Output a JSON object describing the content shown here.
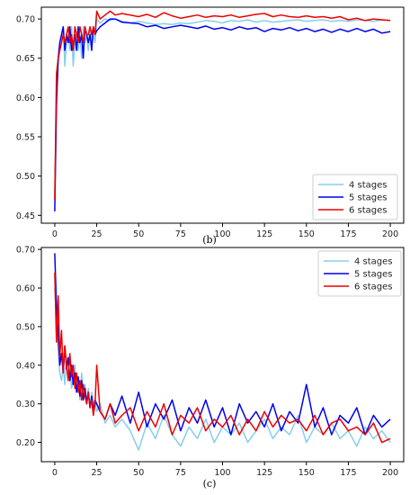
{
  "chart_data": [
    {
      "type": "line",
      "caption": "(b)",
      "xlim": [
        -8,
        208
      ],
      "ylim": [
        0.44,
        0.715
      ],
      "xticks": [
        "0",
        "25",
        "50",
        "75",
        "100",
        "125",
        "150",
        "175",
        "200"
      ],
      "yticks": [
        "0.45",
        "0.50",
        "0.55",
        "0.60",
        "0.65",
        "0.70"
      ],
      "grid": false,
      "legend": "bottom-right",
      "series": [
        {
          "name": "4 stages",
          "color": "#87ceeb",
          "x": [
            0,
            1,
            2,
            3,
            4,
            5,
            6,
            7,
            8,
            9,
            10,
            11,
            12,
            13,
            14,
            15,
            16,
            17,
            18,
            19,
            20,
            21,
            22,
            23,
            24,
            25,
            27,
            30,
            33,
            36,
            40,
            45,
            50,
            55,
            60,
            65,
            70,
            75,
            80,
            85,
            90,
            95,
            100,
            105,
            110,
            115,
            120,
            125,
            130,
            135,
            140,
            145,
            150,
            155,
            160,
            165,
            170,
            175,
            180,
            185,
            190,
            195,
            200
          ],
          "values": [
            0.47,
            0.6,
            0.64,
            0.66,
            0.67,
            0.69,
            0.64,
            0.67,
            0.68,
            0.66,
            0.69,
            0.64,
            0.67,
            0.68,
            0.66,
            0.68,
            0.65,
            0.69,
            0.67,
            0.68,
            0.66,
            0.69,
            0.67,
            0.68,
            0.67,
            0.7,
            0.695,
            0.7,
            0.698,
            0.7,
            0.697,
            0.695,
            0.697,
            0.695,
            0.693,
            0.694,
            0.693,
            0.695,
            0.694,
            0.696,
            0.698,
            0.697,
            0.695,
            0.698,
            0.697,
            0.699,
            0.696,
            0.698,
            0.696,
            0.697,
            0.698,
            0.699,
            0.697,
            0.698,
            0.699,
            0.697,
            0.698,
            0.697,
            0.699,
            0.698,
            0.697,
            0.699,
            0.698
          ]
        },
        {
          "name": "5 stages",
          "color": "#0000ee",
          "x": [
            0,
            1,
            2,
            3,
            4,
            5,
            6,
            7,
            8,
            9,
            10,
            11,
            12,
            13,
            14,
            15,
            16,
            17,
            18,
            19,
            20,
            21,
            22,
            23,
            24,
            25,
            27,
            30,
            33,
            36,
            40,
            45,
            50,
            55,
            60,
            65,
            70,
            75,
            80,
            85,
            90,
            95,
            100,
            105,
            110,
            115,
            120,
            125,
            130,
            135,
            140,
            145,
            150,
            155,
            160,
            165,
            170,
            175,
            180,
            185,
            190,
            195,
            200
          ],
          "values": [
            0.455,
            0.59,
            0.65,
            0.67,
            0.68,
            0.69,
            0.66,
            0.68,
            0.67,
            0.69,
            0.66,
            0.67,
            0.68,
            0.66,
            0.69,
            0.67,
            0.68,
            0.65,
            0.69,
            0.68,
            0.67,
            0.68,
            0.66,
            0.69,
            0.68,
            0.685,
            0.69,
            0.695,
            0.7,
            0.7,
            0.696,
            0.695,
            0.694,
            0.69,
            0.692,
            0.688,
            0.69,
            0.692,
            0.69,
            0.688,
            0.691,
            0.687,
            0.689,
            0.686,
            0.69,
            0.687,
            0.689,
            0.684,
            0.688,
            0.686,
            0.689,
            0.685,
            0.688,
            0.684,
            0.687,
            0.683,
            0.687,
            0.684,
            0.688,
            0.684,
            0.687,
            0.682,
            0.684
          ]
        },
        {
          "name": "6 stages",
          "color": "#ee0000",
          "x": [
            0,
            1,
            2,
            3,
            4,
            5,
            6,
            7,
            8,
            9,
            10,
            11,
            12,
            13,
            14,
            15,
            16,
            17,
            18,
            19,
            20,
            21,
            22,
            23,
            24,
            25,
            27,
            30,
            33,
            36,
            40,
            45,
            50,
            55,
            60,
            65,
            70,
            75,
            80,
            85,
            90,
            95,
            100,
            105,
            110,
            115,
            120,
            125,
            130,
            135,
            140,
            145,
            150,
            155,
            160,
            165,
            170,
            175,
            180,
            185,
            190,
            195,
            200
          ],
          "values": [
            0.47,
            0.63,
            0.65,
            0.66,
            0.67,
            0.68,
            0.67,
            0.68,
            0.69,
            0.67,
            0.68,
            0.66,
            0.69,
            0.68,
            0.67,
            0.69,
            0.68,
            0.67,
            0.69,
            0.68,
            0.68,
            0.69,
            0.68,
            0.69,
            0.68,
            0.71,
            0.7,
            0.705,
            0.71,
            0.705,
            0.707,
            0.705,
            0.703,
            0.706,
            0.702,
            0.708,
            0.704,
            0.701,
            0.703,
            0.705,
            0.702,
            0.704,
            0.703,
            0.705,
            0.702,
            0.704,
            0.706,
            0.707,
            0.703,
            0.705,
            0.703,
            0.702,
            0.704,
            0.702,
            0.703,
            0.701,
            0.703,
            0.699,
            0.701,
            0.698,
            0.7,
            0.699,
            0.698
          ]
        }
      ]
    },
    {
      "type": "line",
      "caption": "(c)",
      "xlim": [
        -8,
        208
      ],
      "ylim": [
        0.15,
        0.705
      ],
      "xticks": [
        "0",
        "25",
        "50",
        "75",
        "100",
        "125",
        "150",
        "175",
        "200"
      ],
      "yticks": [
        "0.20",
        "0.30",
        "0.40",
        "0.50",
        "0.60",
        "0.70"
      ],
      "grid": false,
      "legend": "top-right",
      "series": [
        {
          "name": "4 stages",
          "color": "#87ceeb",
          "x": [
            0,
            1,
            2,
            3,
            4,
            5,
            6,
            7,
            8,
            9,
            10,
            11,
            12,
            13,
            14,
            15,
            16,
            17,
            18,
            19,
            20,
            21,
            22,
            23,
            24,
            25,
            27,
            30,
            33,
            36,
            40,
            45,
            50,
            55,
            60,
            65,
            70,
            75,
            80,
            85,
            90,
            95,
            100,
            105,
            110,
            115,
            120,
            125,
            130,
            135,
            140,
            145,
            150,
            155,
            160,
            165,
            170,
            175,
            180,
            185,
            190,
            195,
            200
          ],
          "values": [
            0.6,
            0.52,
            0.44,
            0.38,
            0.36,
            0.4,
            0.35,
            0.42,
            0.37,
            0.39,
            0.34,
            0.36,
            0.4,
            0.33,
            0.36,
            0.31,
            0.38,
            0.32,
            0.35,
            0.3,
            0.34,
            0.29,
            0.33,
            0.3,
            0.31,
            0.28,
            0.3,
            0.25,
            0.27,
            0.24,
            0.26,
            0.23,
            0.18,
            0.25,
            0.21,
            0.27,
            0.22,
            0.19,
            0.24,
            0.21,
            0.26,
            0.2,
            0.24,
            0.22,
            0.25,
            0.2,
            0.23,
            0.26,
            0.21,
            0.24,
            0.22,
            0.27,
            0.2,
            0.24,
            0.22,
            0.25,
            0.21,
            0.23,
            0.19,
            0.24,
            0.21,
            0.23,
            0.2
          ]
        },
        {
          "name": "5 stages",
          "color": "#0000ee",
          "x": [
            0,
            1,
            2,
            3,
            4,
            5,
            6,
            7,
            8,
            9,
            10,
            11,
            12,
            13,
            14,
            15,
            16,
            17,
            18,
            19,
            20,
            21,
            22,
            23,
            24,
            25,
            27,
            30,
            33,
            36,
            40,
            45,
            50,
            55,
            60,
            65,
            70,
            75,
            80,
            85,
            90,
            95,
            100,
            105,
            110,
            115,
            120,
            125,
            130,
            135,
            140,
            145,
            150,
            155,
            160,
            165,
            170,
            175,
            180,
            185,
            190,
            195,
            200
          ],
          "values": [
            0.69,
            0.55,
            0.48,
            0.4,
            0.43,
            0.38,
            0.45,
            0.39,
            0.42,
            0.36,
            0.4,
            0.35,
            0.38,
            0.33,
            0.37,
            0.32,
            0.36,
            0.31,
            0.34,
            0.3,
            0.33,
            0.29,
            0.32,
            0.28,
            0.31,
            0.3,
            0.28,
            0.26,
            0.3,
            0.27,
            0.32,
            0.25,
            0.33,
            0.24,
            0.3,
            0.26,
            0.31,
            0.23,
            0.29,
            0.25,
            0.31,
            0.24,
            0.29,
            0.22,
            0.3,
            0.25,
            0.28,
            0.24,
            0.3,
            0.23,
            0.28,
            0.25,
            0.35,
            0.24,
            0.29,
            0.22,
            0.27,
            0.25,
            0.29,
            0.22,
            0.27,
            0.24,
            0.26
          ]
        },
        {
          "name": "6 stages",
          "color": "#ee0000",
          "x": [
            0,
            1,
            2,
            3,
            4,
            5,
            6,
            7,
            8,
            9,
            10,
            11,
            12,
            13,
            14,
            15,
            16,
            17,
            18,
            19,
            20,
            21,
            22,
            23,
            24,
            25,
            27,
            30,
            33,
            36,
            40,
            45,
            50,
            55,
            60,
            65,
            70,
            75,
            80,
            85,
            90,
            95,
            100,
            105,
            110,
            115,
            120,
            125,
            130,
            135,
            140,
            145,
            150,
            155,
            160,
            165,
            170,
            175,
            180,
            185,
            190,
            195,
            200
          ],
          "values": [
            0.64,
            0.46,
            0.58,
            0.42,
            0.49,
            0.38,
            0.45,
            0.4,
            0.36,
            0.43,
            0.37,
            0.4,
            0.34,
            0.38,
            0.33,
            0.36,
            0.31,
            0.35,
            0.32,
            0.3,
            0.33,
            0.29,
            0.31,
            0.27,
            0.3,
            0.4,
            0.28,
            0.26,
            0.3,
            0.25,
            0.27,
            0.29,
            0.23,
            0.28,
            0.24,
            0.3,
            0.22,
            0.27,
            0.25,
            0.29,
            0.23,
            0.26,
            0.24,
            0.27,
            0.22,
            0.26,
            0.23,
            0.28,
            0.24,
            0.27,
            0.25,
            0.26,
            0.23,
            0.27,
            0.22,
            0.25,
            0.26,
            0.23,
            0.24,
            0.22,
            0.25,
            0.2,
            0.21
          ]
        }
      ]
    }
  ]
}
